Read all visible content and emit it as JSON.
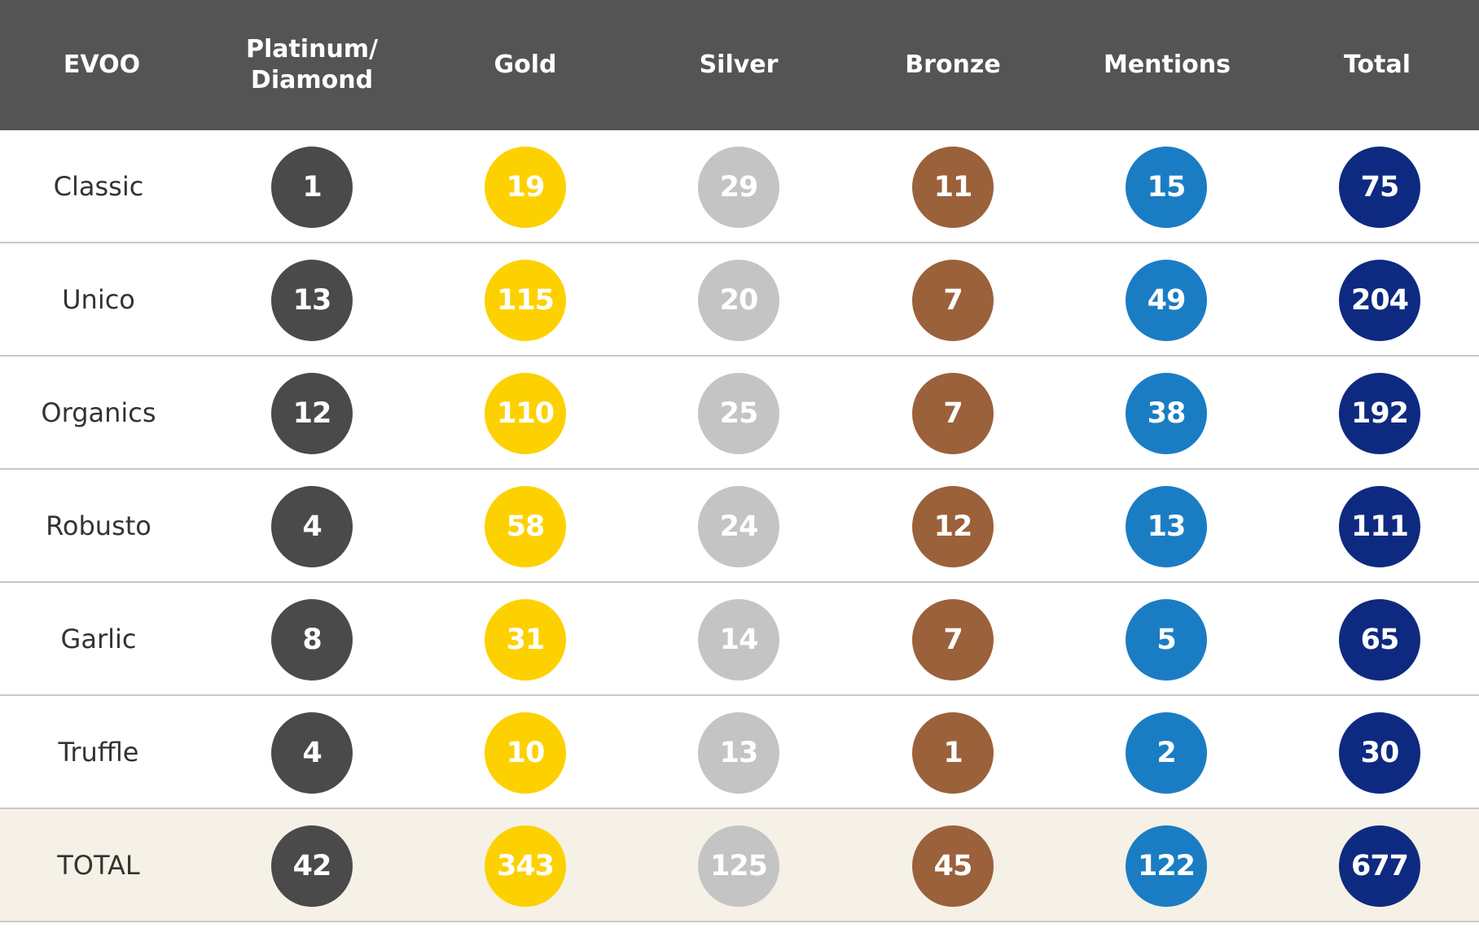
{
  "chart_data": {
    "type": "table",
    "columns": [
      "EVOO",
      "Platinum/\nDiamond",
      "Gold",
      "Silver",
      "Bronze",
      "Mentions",
      "Total"
    ],
    "rows": [
      {
        "label": "Classic",
        "values": [
          1,
          19,
          29,
          11,
          15,
          75
        ]
      },
      {
        "label": "Unico",
        "values": [
          13,
          115,
          20,
          7,
          49,
          204
        ]
      },
      {
        "label": "Organics",
        "values": [
          12,
          110,
          25,
          7,
          38,
          192
        ]
      },
      {
        "label": "Robusto",
        "values": [
          4,
          58,
          24,
          12,
          13,
          111
        ]
      },
      {
        "label": "Garlic",
        "values": [
          8,
          31,
          14,
          7,
          5,
          65
        ]
      },
      {
        "label": "Truffle",
        "values": [
          4,
          10,
          13,
          1,
          2,
          30
        ]
      },
      {
        "label": "TOTAL",
        "values": [
          42,
          343,
          125,
          45,
          122,
          677
        ]
      }
    ],
    "colors": {
      "header_bg": "#545454",
      "platinum": "#4a4a4a",
      "gold": "#fdd100",
      "silver": "#c4c4c4",
      "bronze": "#9b613b",
      "mentions": "#1a7dc4",
      "total": "#0e2a80",
      "total_row_bg": "#f5f1e6"
    }
  }
}
